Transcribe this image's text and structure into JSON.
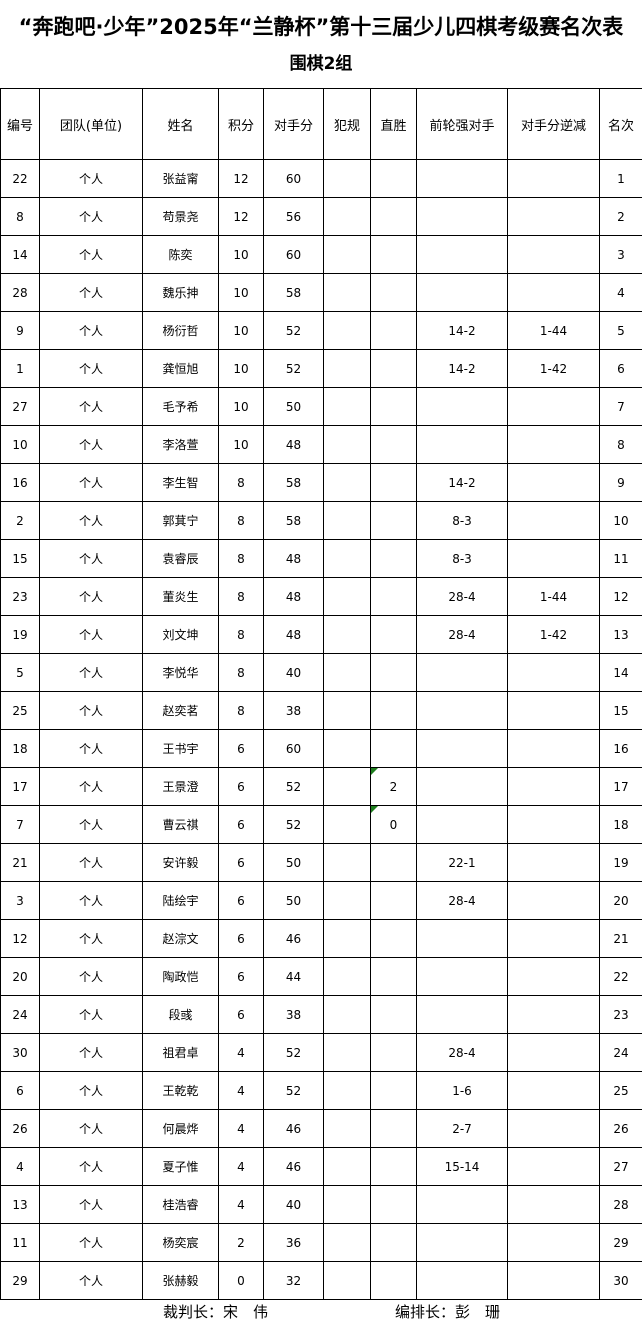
{
  "page": {
    "title": "“奔跑吧·少年”2025年“兰静杯”第十三届少儿四棋考级赛名次表",
    "subtitle": "围棋2组",
    "background_color": "#ffffff",
    "border_color": "#000000",
    "flag_color": "#1e7e1e"
  },
  "table": {
    "columns": [
      {
        "key": "number",
        "label": "编号"
      },
      {
        "key": "team",
        "label": "团队(单位)"
      },
      {
        "key": "name",
        "label": "姓名"
      },
      {
        "key": "score",
        "label": "积分"
      },
      {
        "key": "opponent_score",
        "label": "对手分"
      },
      {
        "key": "foul",
        "label": "犯规"
      },
      {
        "key": "direct_win",
        "label": "直胜"
      },
      {
        "key": "prev_strong_opponent",
        "label": "前轮强对手"
      },
      {
        "key": "opponent_score_reduction",
        "label": "对手分逆减"
      },
      {
        "key": "rank",
        "label": "名次"
      }
    ],
    "rows": [
      {
        "number": "22",
        "team": "个人",
        "name": "张益甯",
        "score": "12",
        "opponent_score": "60",
        "foul": "",
        "direct_win": "",
        "prev_strong_opponent": "",
        "opponent_score_reduction": "",
        "rank": "1",
        "direct_win_flag": false
      },
      {
        "number": "8",
        "team": "个人",
        "name": "苟景尧",
        "score": "12",
        "opponent_score": "56",
        "foul": "",
        "direct_win": "",
        "prev_strong_opponent": "",
        "opponent_score_reduction": "",
        "rank": "2",
        "direct_win_flag": false
      },
      {
        "number": "14",
        "team": "个人",
        "name": "陈奕",
        "score": "10",
        "opponent_score": "60",
        "foul": "",
        "direct_win": "",
        "prev_strong_opponent": "",
        "opponent_score_reduction": "",
        "rank": "3",
        "direct_win_flag": false
      },
      {
        "number": "28",
        "team": "个人",
        "name": "魏乐抻",
        "score": "10",
        "opponent_score": "58",
        "foul": "",
        "direct_win": "",
        "prev_strong_opponent": "",
        "opponent_score_reduction": "",
        "rank": "4",
        "direct_win_flag": false
      },
      {
        "number": "9",
        "team": "个人",
        "name": "杨衍哲",
        "score": "10",
        "opponent_score": "52",
        "foul": "",
        "direct_win": "",
        "prev_strong_opponent": "14-2",
        "opponent_score_reduction": "1-44",
        "rank": "5",
        "direct_win_flag": false
      },
      {
        "number": "1",
        "team": "个人",
        "name": "龚恒旭",
        "score": "10",
        "opponent_score": "52",
        "foul": "",
        "direct_win": "",
        "prev_strong_opponent": "14-2",
        "opponent_score_reduction": "1-42",
        "rank": "6",
        "direct_win_flag": false
      },
      {
        "number": "27",
        "team": "个人",
        "name": "毛予希",
        "score": "10",
        "opponent_score": "50",
        "foul": "",
        "direct_win": "",
        "prev_strong_opponent": "",
        "opponent_score_reduction": "",
        "rank": "7",
        "direct_win_flag": false
      },
      {
        "number": "10",
        "team": "个人",
        "name": "李洛萱",
        "score": "10",
        "opponent_score": "48",
        "foul": "",
        "direct_win": "",
        "prev_strong_opponent": "",
        "opponent_score_reduction": "",
        "rank": "8",
        "direct_win_flag": false
      },
      {
        "number": "16",
        "team": "个人",
        "name": "李生智",
        "score": "8",
        "opponent_score": "58",
        "foul": "",
        "direct_win": "",
        "prev_strong_opponent": "14-2",
        "opponent_score_reduction": "",
        "rank": "9",
        "direct_win_flag": false
      },
      {
        "number": "2",
        "team": "个人",
        "name": "郭萁宁",
        "score": "8",
        "opponent_score": "58",
        "foul": "",
        "direct_win": "",
        "prev_strong_opponent": "8-3",
        "opponent_score_reduction": "",
        "rank": "10",
        "direct_win_flag": false
      },
      {
        "number": "15",
        "team": "个人",
        "name": "袁睿辰",
        "score": "8",
        "opponent_score": "48",
        "foul": "",
        "direct_win": "",
        "prev_strong_opponent": "8-3",
        "opponent_score_reduction": "",
        "rank": "11",
        "direct_win_flag": false
      },
      {
        "number": "23",
        "team": "个人",
        "name": "董炎生",
        "score": "8",
        "opponent_score": "48",
        "foul": "",
        "direct_win": "",
        "prev_strong_opponent": "28-4",
        "opponent_score_reduction": "1-44",
        "rank": "12",
        "direct_win_flag": false
      },
      {
        "number": "19",
        "team": "个人",
        "name": "刘文坤",
        "score": "8",
        "opponent_score": "48",
        "foul": "",
        "direct_win": "",
        "prev_strong_opponent": "28-4",
        "opponent_score_reduction": "1-42",
        "rank": "13",
        "direct_win_flag": false
      },
      {
        "number": "5",
        "team": "个人",
        "name": "李悦华",
        "score": "8",
        "opponent_score": "40",
        "foul": "",
        "direct_win": "",
        "prev_strong_opponent": "",
        "opponent_score_reduction": "",
        "rank": "14",
        "direct_win_flag": false
      },
      {
        "number": "25",
        "team": "个人",
        "name": "赵奕茗",
        "score": "8",
        "opponent_score": "38",
        "foul": "",
        "direct_win": "",
        "prev_strong_opponent": "",
        "opponent_score_reduction": "",
        "rank": "15",
        "direct_win_flag": false
      },
      {
        "number": "18",
        "team": "个人",
        "name": "王书宇",
        "score": "6",
        "opponent_score": "60",
        "foul": "",
        "direct_win": "",
        "prev_strong_opponent": "",
        "opponent_score_reduction": "",
        "rank": "16",
        "direct_win_flag": false
      },
      {
        "number": "17",
        "team": "个人",
        "name": "王景澄",
        "score": "6",
        "opponent_score": "52",
        "foul": "",
        "direct_win": "2",
        "prev_strong_opponent": "",
        "opponent_score_reduction": "",
        "rank": "17",
        "direct_win_flag": true
      },
      {
        "number": "7",
        "team": "个人",
        "name": "曹云祺",
        "score": "6",
        "opponent_score": "52",
        "foul": "",
        "direct_win": "0",
        "prev_strong_opponent": "",
        "opponent_score_reduction": "",
        "rank": "18",
        "direct_win_flag": true
      },
      {
        "number": "21",
        "team": "个人",
        "name": "安许毅",
        "score": "6",
        "opponent_score": "50",
        "foul": "",
        "direct_win": "",
        "prev_strong_opponent": "22-1",
        "opponent_score_reduction": "",
        "rank": "19",
        "direct_win_flag": false
      },
      {
        "number": "3",
        "team": "个人",
        "name": "陆绘宇",
        "score": "6",
        "opponent_score": "50",
        "foul": "",
        "direct_win": "",
        "prev_strong_opponent": "28-4",
        "opponent_score_reduction": "",
        "rank": "20",
        "direct_win_flag": false
      },
      {
        "number": "12",
        "team": "个人",
        "name": "赵淙文",
        "score": "6",
        "opponent_score": "46",
        "foul": "",
        "direct_win": "",
        "prev_strong_opponent": "",
        "opponent_score_reduction": "",
        "rank": "21",
        "direct_win_flag": false
      },
      {
        "number": "20",
        "team": "个人",
        "name": "陶政恺",
        "score": "6",
        "opponent_score": "44",
        "foul": "",
        "direct_win": "",
        "prev_strong_opponent": "",
        "opponent_score_reduction": "",
        "rank": "22",
        "direct_win_flag": false
      },
      {
        "number": "24",
        "team": "个人",
        "name": "段彧",
        "score": "6",
        "opponent_score": "38",
        "foul": "",
        "direct_win": "",
        "prev_strong_opponent": "",
        "opponent_score_reduction": "",
        "rank": "23",
        "direct_win_flag": false
      },
      {
        "number": "30",
        "team": "个人",
        "name": "祖君卓",
        "score": "4",
        "opponent_score": "52",
        "foul": "",
        "direct_win": "",
        "prev_strong_opponent": "28-4",
        "opponent_score_reduction": "",
        "rank": "24",
        "direct_win_flag": false
      },
      {
        "number": "6",
        "team": "个人",
        "name": "王乾乾",
        "score": "4",
        "opponent_score": "52",
        "foul": "",
        "direct_win": "",
        "prev_strong_opponent": "1-6",
        "opponent_score_reduction": "",
        "rank": "25",
        "direct_win_flag": false
      },
      {
        "number": "26",
        "team": "个人",
        "name": "何晨烨",
        "score": "4",
        "opponent_score": "46",
        "foul": "",
        "direct_win": "",
        "prev_strong_opponent": "2-7",
        "opponent_score_reduction": "",
        "rank": "26",
        "direct_win_flag": false
      },
      {
        "number": "4",
        "team": "个人",
        "name": "夏子惟",
        "score": "4",
        "opponent_score": "46",
        "foul": "",
        "direct_win": "",
        "prev_strong_opponent": "15-14",
        "opponent_score_reduction": "",
        "rank": "27",
        "direct_win_flag": false
      },
      {
        "number": "13",
        "team": "个人",
        "name": "桂浩睿",
        "score": "4",
        "opponent_score": "40",
        "foul": "",
        "direct_win": "",
        "prev_strong_opponent": "",
        "opponent_score_reduction": "",
        "rank": "28",
        "direct_win_flag": false
      },
      {
        "number": "11",
        "team": "个人",
        "name": "杨奕宸",
        "score": "2",
        "opponent_score": "36",
        "foul": "",
        "direct_win": "",
        "prev_strong_opponent": "",
        "opponent_score_reduction": "",
        "rank": "29",
        "direct_win_flag": false
      },
      {
        "number": "29",
        "team": "个人",
        "name": "张赫毅",
        "score": "0",
        "opponent_score": "32",
        "foul": "",
        "direct_win": "",
        "prev_strong_opponent": "",
        "opponent_score_reduction": "",
        "rank": "30",
        "direct_win_flag": false
      }
    ]
  },
  "footer": {
    "referee": "裁判长：宋　伟",
    "arranger": "编排长：彭　珊"
  }
}
